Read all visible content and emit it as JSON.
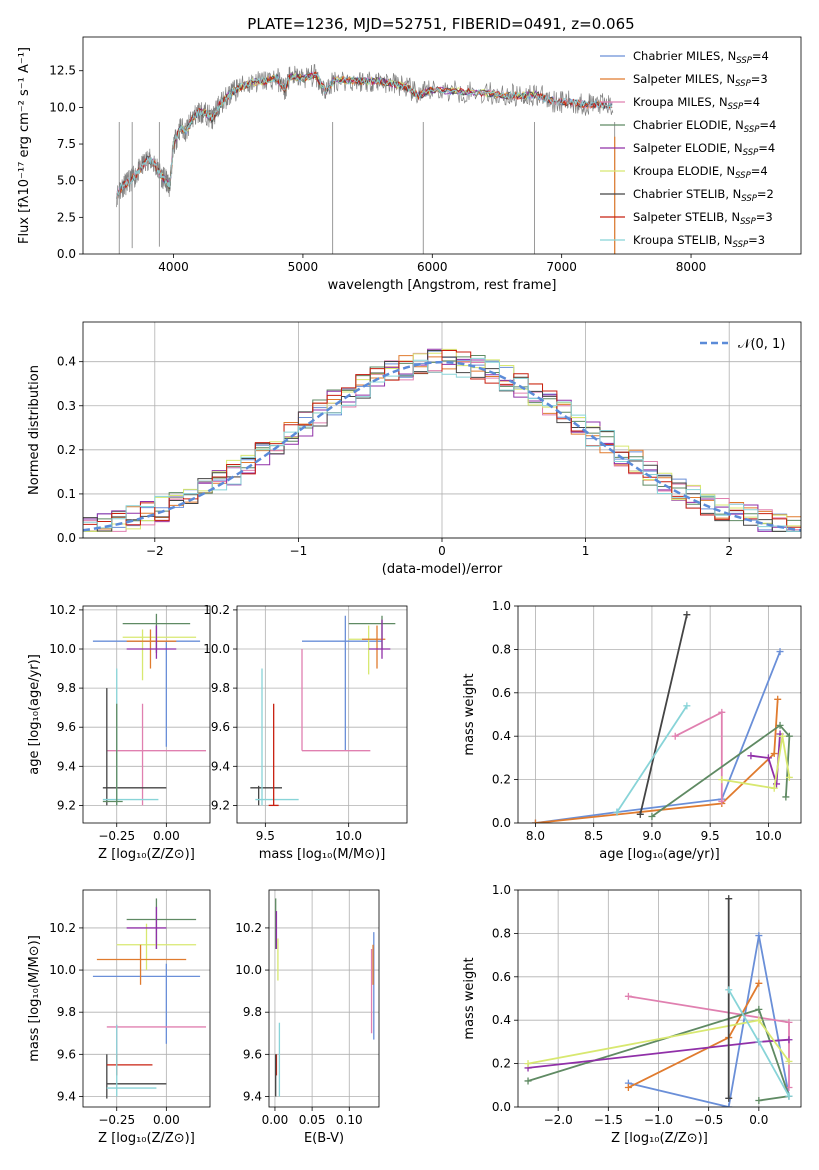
{
  "title": "PLATE=1236, MJD=52751, FIBERID=0491, z=0.065",
  "colors": {
    "c1": "#6a8fd8",
    "c2": "#e07b2e",
    "c3": "#e080b0",
    "c4": "#5f8a63",
    "c5": "#9030a8",
    "c6": "#d8e870",
    "c7": "#444444",
    "c8": "#c82010",
    "c9": "#88d4d8"
  },
  "chart_data": [
    {
      "id": "spectrum",
      "type": "line",
      "xlabel": "wavelength [Angstrom, rest frame]",
      "ylabel": "Flux [fλ10⁻¹⁷ erg cm⁻² s⁻¹ A⁻¹]",
      "xlim": [
        3300,
        8850
      ],
      "ylim": [
        0,
        14.8
      ],
      "xticks": [
        4000,
        5000,
        6000,
        7000,
        8000
      ],
      "yticks": [
        0.0,
        2.5,
        5.0,
        7.5,
        10.0,
        12.5
      ],
      "grid": false,
      "legend_position": "upper-right",
      "data_curve": [
        [
          3560,
          4.0
        ],
        [
          3600,
          4.6
        ],
        [
          3650,
          4.9
        ],
        [
          3700,
          5.3
        ],
        [
          3750,
          5.9
        ],
        [
          3800,
          6.5
        ],
        [
          3850,
          6.2
        ],
        [
          3900,
          5.4
        ],
        [
          3940,
          5.0
        ],
        [
          3970,
          4.6
        ],
        [
          4000,
          7.4
        ],
        [
          4050,
          8.6
        ],
        [
          4100,
          8.4
        ],
        [
          4150,
          9.3
        ],
        [
          4200,
          9.7
        ],
        [
          4250,
          9.6
        ],
        [
          4300,
          9.2
        ],
        [
          4350,
          10.1
        ],
        [
          4400,
          10.6
        ],
        [
          4450,
          11.0
        ],
        [
          4500,
          11.3
        ],
        [
          4600,
          11.7
        ],
        [
          4700,
          11.8
        ],
        [
          4800,
          12.0
        ],
        [
          4860,
          11.2
        ],
        [
          4900,
          12.1
        ],
        [
          5000,
          12.0
        ],
        [
          5100,
          12.2
        ],
        [
          5175,
          11.1
        ],
        [
          5250,
          11.9
        ],
        [
          5400,
          11.8
        ],
        [
          5500,
          11.8
        ],
        [
          5600,
          11.8
        ],
        [
          5700,
          11.6
        ],
        [
          5800,
          11.4
        ],
        [
          5893,
          10.8
        ],
        [
          6000,
          11.2
        ],
        [
          6200,
          11.1
        ],
        [
          6400,
          11.0
        ],
        [
          6563,
          10.8
        ],
        [
          6700,
          10.8
        ],
        [
          6800,
          10.9
        ],
        [
          6900,
          10.5
        ],
        [
          7000,
          10.4
        ],
        [
          7100,
          10.3
        ],
        [
          7200,
          10.2
        ],
        [
          7300,
          10.2
        ],
        [
          7400,
          10.1
        ]
      ],
      "model_names": [
        "Chabrier MILES",
        "Salpeter MILES",
        "Kroupa MILES",
        "Chabrier ELODIE",
        "Salpeter ELODIE",
        "Kroupa ELODIE",
        "Chabrier STELIB",
        "Salpeter STELIB",
        "Kroupa STELIB"
      ],
      "model_nssp": [
        "4",
        "3",
        "4",
        "4",
        "4",
        "4",
        "2",
        "3",
        "3"
      ],
      "model_ranges": [
        [
          3540,
          7420
        ],
        [
          3540,
          7420
        ],
        [
          3540,
          7420
        ],
        [
          3900,
          6800
        ],
        [
          3900,
          6800
        ],
        [
          3900,
          6800
        ],
        [
          3540,
          7420
        ],
        [
          3540,
          7420
        ],
        [
          3540,
          7420
        ]
      ]
    },
    {
      "id": "residual-hist",
      "type": "histogram",
      "xlabel": "(data-model)/error",
      "ylabel": "Normed distribution",
      "xlim": [
        -2.5,
        2.5
      ],
      "ylim": [
        0,
        0.49
      ],
      "xticks": [
        -2,
        -1,
        0,
        1,
        2
      ],
      "yticks": [
        0.0,
        0.1,
        0.2,
        0.3,
        0.4
      ],
      "grid": true,
      "legend_label": "𝒩(0, 1)",
      "legend_position": "upper-right",
      "bin_width": 0.1,
      "seed": 7
    },
    {
      "id": "age-vs-Z",
      "type": "errorbar",
      "xlabel": "Z [log₁₀(Z/Z⊙)]",
      "ylabel": "age  [log₁₀(age/yr)]",
      "xlim": [
        -0.42,
        0.22
      ],
      "ylim": [
        9.11,
        10.22
      ],
      "xticks": [
        -0.25,
        0.0
      ],
      "yticks": [
        9.2,
        9.4,
        9.6,
        9.8,
        10.0,
        10.2
      ],
      "grid": true,
      "points": [
        {
          "c": "c1",
          "x": 0.0,
          "y": 10.04,
          "xlo": -0.37,
          "xhi": 0.17,
          "ylo": 9.5,
          "yhi": 10.04
        },
        {
          "c": "c4",
          "x": -0.05,
          "y": 10.13,
          "xlo": -0.22,
          "xhi": 0.12,
          "ylo": 9.98,
          "yhi": 10.18
        },
        {
          "c": "c6",
          "x": -0.12,
          "y": 10.06,
          "xlo": -0.22,
          "xhi": 0.15,
          "ylo": 9.84,
          "yhi": 10.1
        },
        {
          "c": "c2",
          "x": -0.08,
          "y": 10.04,
          "xlo": -0.2,
          "xhi": 0.05,
          "ylo": 9.9,
          "yhi": 10.1
        },
        {
          "c": "c5",
          "x": -0.05,
          "y": 10.0,
          "xlo": -0.2,
          "xhi": 0.05,
          "ylo": 9.95,
          "yhi": 10.12
        },
        {
          "c": "c3",
          "x": -0.12,
          "y": 9.48,
          "xlo": -0.3,
          "xhi": 0.2,
          "ylo": 9.2,
          "yhi": 9.72
        },
        {
          "c": "c7",
          "x": -0.3,
          "y": 9.29,
          "xlo": -0.32,
          "xhi": 0.0,
          "ylo": 9.2,
          "yhi": 9.8
        },
        {
          "c": "c9",
          "x": -0.25,
          "y": 9.23,
          "xlo": -0.32,
          "xhi": -0.04,
          "ylo": 9.2,
          "yhi": 9.9
        },
        {
          "c": "c4",
          "x": -0.25,
          "y": 9.22,
          "xlo": -0.32,
          "xhi": -0.22,
          "ylo": 9.2,
          "yhi": 9.72
        }
      ]
    },
    {
      "id": "age-vs-mass",
      "type": "errorbar",
      "xlabel": "mass [log₁₀(M/M⊙)]",
      "ylabel": "",
      "xlim": [
        9.33,
        10.35
      ],
      "ylim": [
        9.11,
        10.22
      ],
      "xticks": [
        9.5,
        10.0
      ],
      "yticks": [
        9.2,
        9.4,
        9.6,
        9.8,
        10.0,
        10.2
      ],
      "grid": true,
      "points": [
        {
          "c": "c1",
          "x": 9.98,
          "y": 10.04,
          "xlo": 9.72,
          "xhi": 10.2,
          "ylo": 9.48,
          "yhi": 10.17
        },
        {
          "c": "c4",
          "x": 10.2,
          "y": 10.13,
          "xlo": 10.0,
          "xhi": 10.28,
          "ylo": 10.0,
          "yhi": 10.17
        },
        {
          "c": "c6",
          "x": 10.12,
          "y": 10.05,
          "xlo": 10.0,
          "xhi": 10.17,
          "ylo": 9.87,
          "yhi": 10.12
        },
        {
          "c": "c2",
          "x": 10.17,
          "y": 10.05,
          "xlo": 10.08,
          "xhi": 10.22,
          "ylo": 9.9,
          "yhi": 10.12
        },
        {
          "c": "c5",
          "x": 10.2,
          "y": 10.0,
          "xlo": 10.12,
          "xhi": 10.25,
          "ylo": 9.95,
          "yhi": 10.15
        },
        {
          "c": "c3",
          "x": 9.72,
          "y": 9.48,
          "xlo": 9.72,
          "xhi": 10.13,
          "ylo": 9.48,
          "yhi": 10.0
        },
        {
          "c": "c7",
          "x": 9.46,
          "y": 9.29,
          "xlo": 9.41,
          "xhi": 9.6,
          "ylo": 9.2,
          "yhi": 9.3
        },
        {
          "c": "c9",
          "x": 9.48,
          "y": 9.23,
          "xlo": 9.44,
          "xhi": 9.7,
          "ylo": 9.2,
          "yhi": 9.9
        },
        {
          "c": "c8",
          "x": 9.55,
          "y": 9.2,
          "xlo": 9.52,
          "xhi": 9.58,
          "ylo": 9.2,
          "yhi": 9.72
        }
      ]
    },
    {
      "id": "weight-vs-age",
      "type": "line",
      "xlabel": "age  [log₁₀(age/yr)]",
      "ylabel": "mass weight",
      "xlim": [
        7.85,
        10.28
      ],
      "ylim": [
        0,
        1.0
      ],
      "xticks": [
        8.0,
        8.5,
        9.0,
        9.5,
        10.0
      ],
      "yticks": [
        0.0,
        0.2,
        0.4,
        0.6,
        0.8,
        1.0
      ],
      "grid": true,
      "series": [
        {
          "c": "c1",
          "x": [
            8.0,
            8.7,
            9.6,
            10.1
          ],
          "y": [
            0.0,
            0.05,
            0.11,
            0.79
          ]
        },
        {
          "c": "c2",
          "x": [
            8.0,
            9.6,
            10.05,
            10.08
          ],
          "y": [
            0.0,
            0.09,
            0.32,
            0.57
          ]
        },
        {
          "c": "c3",
          "x": [
            9.2,
            9.6,
            9.6
          ],
          "y": [
            0.4,
            0.51,
            0.1
          ]
        },
        {
          "c": "c4",
          "x": [
            9.0,
            10.1,
            10.18,
            10.15
          ],
          "y": [
            0.03,
            0.45,
            0.4,
            0.12
          ]
        },
        {
          "c": "c5",
          "x": [
            9.85,
            10.0,
            10.07,
            10.1
          ],
          "y": [
            0.31,
            0.3,
            0.18,
            0.41
          ]
        },
        {
          "c": "c6",
          "x": [
            9.6,
            10.05,
            10.12,
            10.18
          ],
          "y": [
            0.2,
            0.16,
            0.4,
            0.21
          ]
        },
        {
          "c": "c7",
          "x": [
            8.9,
            9.3
          ],
          "y": [
            0.04,
            0.96
          ]
        },
        {
          "c": "c9",
          "x": [
            8.7,
            9.3
          ],
          "y": [
            0.05,
            0.54
          ]
        }
      ]
    },
    {
      "id": "mass-vs-Z",
      "type": "errorbar",
      "xlabel": "Z [log₁₀(Z/Z⊙)]",
      "ylabel": "mass [log₁₀(M/M⊙)]",
      "xlim": [
        -0.42,
        0.22
      ],
      "ylim": [
        9.35,
        10.38
      ],
      "xticks": [
        -0.25,
        0.0
      ],
      "yticks": [
        9.4,
        9.6,
        9.8,
        10.0,
        10.2
      ],
      "grid": true,
      "points": [
        {
          "c": "c1",
          "x": 0.0,
          "y": 9.97,
          "xlo": -0.37,
          "xhi": 0.17,
          "ylo": 9.65,
          "yhi": 10.03
        },
        {
          "c": "c4",
          "x": -0.05,
          "y": 10.24,
          "xlo": -0.2,
          "xhi": 0.15,
          "ylo": 10.1,
          "yhi": 10.34
        },
        {
          "c": "c6",
          "x": -0.1,
          "y": 10.12,
          "xlo": -0.25,
          "xhi": 0.15,
          "ylo": 10.0,
          "yhi": 10.22
        },
        {
          "c": "c2",
          "x": -0.13,
          "y": 10.05,
          "xlo": -0.35,
          "xhi": 0.1,
          "ylo": 9.93,
          "yhi": 10.12
        },
        {
          "c": "c5",
          "x": -0.05,
          "y": 10.2,
          "xlo": -0.2,
          "xhi": 0.0,
          "ylo": 10.1,
          "yhi": 10.3
        },
        {
          "c": "c3",
          "x": -0.25,
          "y": 9.73,
          "xlo": -0.3,
          "xhi": 0.2,
          "ylo": 9.6,
          "yhi": 9.74
        },
        {
          "c": "c7",
          "x": -0.3,
          "y": 9.46,
          "xlo": -0.3,
          "xhi": 0.0,
          "ylo": 9.39,
          "yhi": 9.6
        },
        {
          "c": "c8",
          "x": -0.25,
          "y": 9.55,
          "xlo": -0.3,
          "xhi": -0.07,
          "ylo": 9.5,
          "yhi": 9.6
        },
        {
          "c": "c9",
          "x": -0.25,
          "y": 9.44,
          "xlo": -0.3,
          "xhi": -0.05,
          "ylo": 9.4,
          "yhi": 9.74
        }
      ]
    },
    {
      "id": "mass-vs-ebv",
      "type": "errorbar",
      "xlabel": "E(B-V)",
      "ylabel": "",
      "xlim": [
        -0.008,
        0.14
      ],
      "ylim": [
        9.35,
        10.38
      ],
      "xticks": [
        0.0,
        0.05,
        0.1
      ],
      "yticks": [
        9.4,
        9.6,
        9.8,
        10.0,
        10.2
      ],
      "grid": true,
      "points": [
        {
          "c": "c4",
          "x": 0.001,
          "y": 10.25,
          "xlo": 0.001,
          "xhi": 0.001,
          "ylo": 10.1,
          "yhi": 10.34
        },
        {
          "c": "c5",
          "x": 0.002,
          "y": 10.2,
          "xlo": 0.002,
          "xhi": 0.002,
          "ylo": 10.1,
          "yhi": 10.28
        },
        {
          "c": "c6",
          "x": 0.004,
          "y": 10.05,
          "xlo": 0.004,
          "xhi": 0.004,
          "ylo": 9.95,
          "yhi": 10.15
        },
        {
          "c": "c8",
          "x": 0.002,
          "y": 9.55,
          "xlo": 0.002,
          "xhi": 0.002,
          "ylo": 9.5,
          "yhi": 9.6
        },
        {
          "c": "c7",
          "x": 0.001,
          "y": 9.46,
          "xlo": 0.001,
          "xhi": 0.001,
          "ylo": 9.4,
          "yhi": 9.6
        },
        {
          "c": "c9",
          "x": 0.006,
          "y": 9.6,
          "xlo": 0.006,
          "xhi": 0.006,
          "ylo": 9.4,
          "yhi": 9.75
        },
        {
          "c": "c1",
          "x": 0.133,
          "y": 10.05,
          "xlo": 0.133,
          "xhi": 0.133,
          "ylo": 9.67,
          "yhi": 10.18
        },
        {
          "c": "c3",
          "x": 0.13,
          "y": 9.85,
          "xlo": 0.13,
          "xhi": 0.13,
          "ylo": 9.7,
          "yhi": 10.1
        },
        {
          "c": "c2",
          "x": 0.132,
          "y": 10.0,
          "xlo": 0.132,
          "xhi": 0.132,
          "ylo": 9.93,
          "yhi": 10.12
        }
      ]
    },
    {
      "id": "weight-vs-Z",
      "type": "line",
      "xlabel": "Z [log₁₀(Z/Z⊙)]",
      "ylabel": "mass weight",
      "xlim": [
        -2.4,
        0.42
      ],
      "ylim": [
        0,
        1.0
      ],
      "xticks": [
        -2.0,
        -1.5,
        -1.0,
        -0.5,
        0.0
      ],
      "yticks": [
        0.0,
        0.2,
        0.4,
        0.6,
        0.8,
        1.0
      ],
      "grid": true,
      "series": [
        {
          "c": "c1",
          "x": [
            -1.3,
            -0.3,
            0.0,
            0.3
          ],
          "y": [
            0.11,
            0.0,
            0.79,
            0.05
          ]
        },
        {
          "c": "c2",
          "x": [
            -1.3,
            -0.3,
            0.0
          ],
          "y": [
            0.09,
            0.32,
            0.57
          ]
        },
        {
          "c": "c3",
          "x": [
            -1.3,
            0.3,
            0.3
          ],
          "y": [
            0.51,
            0.39,
            0.09
          ]
        },
        {
          "c": "c4",
          "x": [
            -2.3,
            0.0,
            0.3,
            0.0
          ],
          "y": [
            0.12,
            0.45,
            0.05,
            0.03
          ]
        },
        {
          "c": "c5",
          "x": [
            -2.3,
            0.0,
            0.3
          ],
          "y": [
            0.18,
            0.3,
            0.31
          ]
        },
        {
          "c": "c6",
          "x": [
            -2.3,
            0.0,
            0.3
          ],
          "y": [
            0.2,
            0.4,
            0.21
          ]
        },
        {
          "c": "c7",
          "x": [
            -0.3,
            -0.3
          ],
          "y": [
            0.04,
            0.96
          ]
        },
        {
          "c": "c9",
          "x": [
            -0.3,
            0.0,
            0.3
          ],
          "y": [
            0.54,
            0.3,
            0.05
          ]
        }
      ]
    }
  ]
}
